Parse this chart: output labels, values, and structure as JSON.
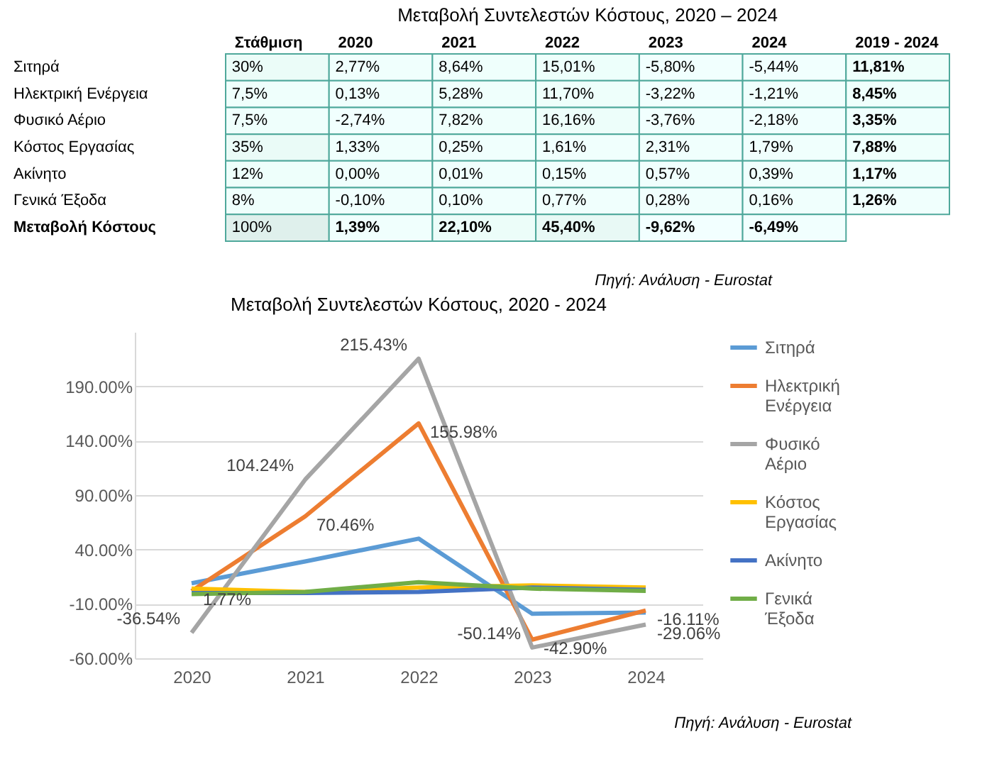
{
  "chart_data": [
    {
      "type": "heatmap",
      "title": "Μεταβολή Συντελεστών Κόστους, 2020 – 2024",
      "categories": [
        "Στάθμιση",
        "2020",
        "2021",
        "2022",
        "2023",
        "2024",
        "2019 - 2024"
      ],
      "y_categories": [
        "Σιτηρά",
        "Ηλεκτρική Ενέργεια",
        "Φυσικό Αέριο",
        "Κόστος Εργασίας",
        "Ακίνητο",
        "Γενικά Έξοδα",
        "Μεταβολή Κόστους"
      ],
      "cells": [
        [
          30,
          2.77,
          8.64,
          15.01,
          -5.8,
          -5.44,
          11.81
        ],
        [
          7.5,
          0.13,
          5.28,
          11.7,
          -3.22,
          -1.21,
          8.45
        ],
        [
          7.5,
          -2.74,
          7.82,
          16.16,
          -3.76,
          -2.18,
          3.35
        ],
        [
          35,
          1.33,
          0.25,
          1.61,
          2.31,
          1.79,
          7.88
        ],
        [
          12,
          0,
          0.01,
          0.15,
          0.57,
          0.39,
          1.17
        ],
        [
          8,
          -0.1,
          0.1,
          0.77,
          0.28,
          0.16,
          1.26
        ],
        [
          100,
          1.39,
          22.1,
          45.4,
          -9.62,
          -6.49,
          null
        ]
      ],
      "cell_labels": [
        [
          "30%",
          "2,77%",
          "8,64%",
          "15,01%",
          "-5,80%",
          "-5,44%",
          "11,81%"
        ],
        [
          "7,5%",
          "0,13%",
          "5,28%",
          "11,70%",
          "-3,22%",
          "-1,21%",
          "8,45%"
        ],
        [
          "7,5%",
          "-2,74%",
          "7,82%",
          "16,16%",
          "-3,76%",
          "-2,18%",
          "3,35%"
        ],
        [
          "35%",
          "1,33%",
          "0,25%",
          "1,61%",
          "2,31%",
          "1,79%",
          "7,88%"
        ],
        [
          "12%",
          "0,00%",
          "0,01%",
          "0,15%",
          "0,57%",
          "0,39%",
          "1,17%"
        ],
        [
          "8%",
          "-0,10%",
          "0,10%",
          "0,77%",
          "0,28%",
          "0,16%",
          "1,26%"
        ],
        [
          "100%",
          "1,39%",
          "22,10%",
          "45,40%",
          "-9,62%",
          "-6,49%",
          null
        ]
      ],
      "annotations": [
        "Πηγή: Ανάλυση - Eurostat"
      ]
    },
    {
      "type": "line",
      "title": "Μεταβολή Συντελεστών Κόστους, 2020 - 2024",
      "categories": [
        "2020",
        "2021",
        "2022",
        "2023",
        "2024"
      ],
      "series": [
        {
          "name": "Σιτηρά",
          "color": "#5b9bd5",
          "values": [
            9,
            29,
            50,
            -19,
            -18
          ]
        },
        {
          "name": "Ηλεκτρική Ενέργεια",
          "color": "#ed7d31",
          "values": [
            1.77,
            70.46,
            155.98,
            -42.9,
            -16.11
          ],
          "value_labels": [
            "1.77%",
            "70.46%",
            "155.98%",
            "-42.90%",
            "-16.11%"
          ]
        },
        {
          "name": "Φυσικό Αέριο",
          "color": "#a5a5a5",
          "values": [
            -36.54,
            104.24,
            215.43,
            -50.14,
            -29.06
          ],
          "value_labels": [
            "-36.54%",
            "104.24%",
            "215.43%",
            "-50.14%",
            "-29.06%"
          ]
        },
        {
          "name": "Κόστος Εργασίας",
          "color": "#ffc000",
          "values": [
            4,
            1,
            5,
            7,
            5
          ]
        },
        {
          "name": "Ακίνητο",
          "color": "#4472c4",
          "values": [
            0,
            0,
            1,
            5,
            3
          ]
        },
        {
          "name": "Γενικά Έξοδα",
          "color": "#70ad47",
          "values": [
            -1,
            1,
            10,
            4,
            2
          ]
        }
      ],
      "ylim": [
        -60,
        240
      ],
      "yticks": [
        {
          "value": -60,
          "label": "-60.00%"
        },
        {
          "value": -10,
          "label": "-10.00%"
        },
        {
          "value": 40,
          "label": "40.00%"
        },
        {
          "value": 90,
          "label": "90.00%"
        },
        {
          "value": 140,
          "label": "140.00%"
        },
        {
          "value": 190,
          "label": "190.00%"
        }
      ],
      "grid": "y",
      "legend": "right",
      "line_style": "solid",
      "marker": "none",
      "annotations": [
        "Πηγή: Ανάλυση - Eurostat"
      ]
    }
  ]
}
